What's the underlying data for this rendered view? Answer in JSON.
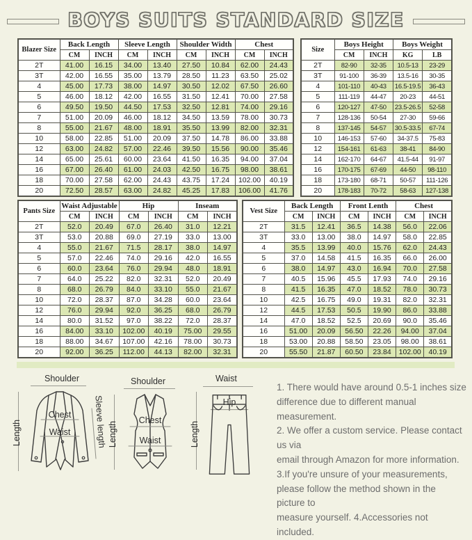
{
  "title": {
    "text": "BOYS SUITS STANDARD SIZE"
  },
  "colors": {
    "background": "#f2f2e4",
    "row_highlight": "#dce8b4",
    "table_border": "#53534b",
    "divider_green": "#e1ebc3",
    "notes_text": "#6d6d6d"
  },
  "tables": {
    "blazer": {
      "size_header": "Blazer Size",
      "groups": [
        {
          "label": "Back Length",
          "units": [
            "CM",
            "INCH"
          ]
        },
        {
          "label": "Sleeve Length",
          "units": [
            "CM",
            "INCH"
          ]
        },
        {
          "label": "Shoulder Width",
          "units": [
            "CM",
            "INCH"
          ]
        },
        {
          "label": "Chest",
          "units": [
            "CM",
            "INCH"
          ]
        }
      ],
      "rows": [
        [
          "2T",
          "41.00",
          "16.15",
          "34.00",
          "13.40",
          "27.50",
          "10.84",
          "62.00",
          "24.43"
        ],
        [
          "3T",
          "42.00",
          "16.55",
          "35.00",
          "13.79",
          "28.50",
          "11.23",
          "63.50",
          "25.02"
        ],
        [
          "4",
          "45.00",
          "17.73",
          "38.00",
          "14.97",
          "30.50",
          "12.02",
          "67.50",
          "26.60"
        ],
        [
          "5",
          "46.00",
          "18.12",
          "42.00",
          "16.55",
          "31.50",
          "12.41",
          "70.00",
          "27.58"
        ],
        [
          "6",
          "49.50",
          "19.50",
          "44.50",
          "17.53",
          "32.50",
          "12.81",
          "74.00",
          "29.16"
        ],
        [
          "7",
          "51.00",
          "20.09",
          "46.00",
          "18.12",
          "34.50",
          "13.59",
          "78.00",
          "30.73"
        ],
        [
          "8",
          "55.00",
          "21.67",
          "48.00",
          "18.91",
          "35.50",
          "13.99",
          "82.00",
          "32.31"
        ],
        [
          "10",
          "58.00",
          "22.85",
          "51.00",
          "20.09",
          "37.50",
          "14.78",
          "86.00",
          "33.88"
        ],
        [
          "12",
          "63.00",
          "24.82",
          "57.00",
          "22.46",
          "39.50",
          "15.56",
          "90.00",
          "35.46"
        ],
        [
          "14",
          "65.00",
          "25.61",
          "60.00",
          "23.64",
          "41.50",
          "16.35",
          "94.00",
          "37.04"
        ],
        [
          "16",
          "67.00",
          "26.40",
          "61.00",
          "24.03",
          "42.50",
          "16.75",
          "98.00",
          "38.61"
        ],
        [
          "18",
          "70.00",
          "27.58",
          "62.00",
          "24.43",
          "43.75",
          "17.24",
          "102.00",
          "40.19"
        ],
        [
          "20",
          "72.50",
          "28.57",
          "63.00",
          "24.82",
          "45.25",
          "17.83",
          "106.00",
          "41.76"
        ]
      ]
    },
    "height_weight": {
      "size_header": "Size",
      "groups": [
        {
          "label": "Boys Height",
          "units": [
            "CM",
            "INCH"
          ]
        },
        {
          "label": "Boys Weight",
          "units": [
            "KG",
            "LB"
          ]
        }
      ],
      "rows": [
        [
          "2T",
          "82-90",
          "32-35",
          "10.5-13",
          "23-29"
        ],
        [
          "3T",
          "91-100",
          "36-39",
          "13.5-16",
          "30-35"
        ],
        [
          "4",
          "101-110",
          "40-43",
          "16.5-19.5",
          "36-43"
        ],
        [
          "5",
          "111-119",
          "44-47",
          "20-23",
          "44-51"
        ],
        [
          "6",
          "120-127",
          "47-50",
          "23.5-26.5",
          "52-58"
        ],
        [
          "7",
          "128-136",
          "50-54",
          "27-30",
          "59-66"
        ],
        [
          "8",
          "137-145",
          "54-57",
          "30.5-33.5",
          "67-74"
        ],
        [
          "10",
          "146-153",
          "57-60",
          "34-37.5",
          "75-83"
        ],
        [
          "12",
          "154-161",
          "61-63",
          "38-41",
          "84-90"
        ],
        [
          "14",
          "162-170",
          "64-67",
          "41.5-44",
          "91-97"
        ],
        [
          "16",
          "170-175",
          "67-69",
          "44-50",
          "98-110"
        ],
        [
          "18",
          "173-180",
          "68-71",
          "50-57",
          "111-126"
        ],
        [
          "20",
          "178-183",
          "70-72",
          "58-63",
          "127-138"
        ]
      ]
    },
    "pants": {
      "size_header": "Pants Size",
      "groups": [
        {
          "label": "Waist Adjustable",
          "units": [
            "CM",
            "INCH"
          ]
        },
        {
          "label": "Hip",
          "units": [
            "CM",
            "INCH"
          ]
        },
        {
          "label": "Inseam",
          "units": [
            "CM",
            "INCH"
          ]
        }
      ],
      "rows": [
        [
          "2T",
          "52.0",
          "20.49",
          "67.0",
          "26.40",
          "31.0",
          "12.21"
        ],
        [
          "3T",
          "53.0",
          "20.88",
          "69.0",
          "27.19",
          "33.0",
          "13.00"
        ],
        [
          "4",
          "55.0",
          "21.67",
          "71.5",
          "28.17",
          "38.0",
          "14.97"
        ],
        [
          "5",
          "57.0",
          "22.46",
          "74.0",
          "29.16",
          "42.0",
          "16.55"
        ],
        [
          "6",
          "60.0",
          "23.64",
          "76.0",
          "29.94",
          "48.0",
          "18.91"
        ],
        [
          "7",
          "64.0",
          "25.22",
          "82.0",
          "32.31",
          "52.0",
          "20.49"
        ],
        [
          "8",
          "68.0",
          "26.79",
          "84.0",
          "33.10",
          "55.0",
          "21.67"
        ],
        [
          "10",
          "72.0",
          "28.37",
          "87.0",
          "34.28",
          "60.0",
          "23.64"
        ],
        [
          "12",
          "76.0",
          "29.94",
          "92.0",
          "36.25",
          "68.0",
          "26.79"
        ],
        [
          "14",
          "80.0",
          "31.52",
          "97.0",
          "38.22",
          "72.0",
          "28.37"
        ],
        [
          "16",
          "84.00",
          "33.10",
          "102.00",
          "40.19",
          "75.00",
          "29.55"
        ],
        [
          "18",
          "88.00",
          "34.67",
          "107.00",
          "42.16",
          "78.00",
          "30.73"
        ],
        [
          "20",
          "92.00",
          "36.25",
          "112.00",
          "44.13",
          "82.00",
          "32.31"
        ]
      ]
    },
    "vest": {
      "size_header": "Vest Size",
      "groups": [
        {
          "label": "Back Length",
          "units": [
            "CM",
            "INCH"
          ]
        },
        {
          "label": "Front Lenth",
          "units": [
            "CM",
            "INCH"
          ]
        },
        {
          "label": "Chest",
          "units": [
            "CM",
            "INCH"
          ]
        }
      ],
      "rows": [
        [
          "2T",
          "31.5",
          "12.41",
          "36.5",
          "14.38",
          "56.0",
          "22.06"
        ],
        [
          "3T",
          "33.0",
          "13.00",
          "38.0",
          "14.97",
          "58.0",
          "22.85"
        ],
        [
          "4",
          "35.5",
          "13.99",
          "40.0",
          "15.76",
          "62.0",
          "24.43"
        ],
        [
          "5",
          "37.0",
          "14.58",
          "41.5",
          "16.35",
          "66.0",
          "26.00"
        ],
        [
          "6",
          "38.0",
          "14.97",
          "43.0",
          "16.94",
          "70.0",
          "27.58"
        ],
        [
          "7",
          "40.5",
          "15.96",
          "45.5",
          "17.93",
          "74.0",
          "29.16"
        ],
        [
          "8",
          "41.5",
          "16.35",
          "47.0",
          "18.52",
          "78.0",
          "30.73"
        ],
        [
          "10",
          "42.5",
          "16.75",
          "49.0",
          "19.31",
          "82.0",
          "32.31"
        ],
        [
          "12",
          "44.5",
          "17.53",
          "50.5",
          "19.90",
          "86.0",
          "33.88"
        ],
        [
          "14",
          "47.0",
          "18.52",
          "52.5",
          "20.69",
          "90.0",
          "35.46"
        ],
        [
          "16",
          "51.00",
          "20.09",
          "56.50",
          "22.26",
          "94.00",
          "37.04"
        ],
        [
          "18",
          "53.00",
          "20.88",
          "58.50",
          "23.05",
          "98.00",
          "38.61"
        ],
        [
          "20",
          "55.50",
          "21.87",
          "60.50",
          "23.84",
          "102.00",
          "40.19"
        ]
      ]
    }
  },
  "diagrams": {
    "jacket": {
      "shoulder": "Shoulder",
      "length": "Length",
      "chest": "Chest",
      "waist": "Waist",
      "sleeve_length": "Sleeve length"
    },
    "vest": {
      "shoulder": "Shoulder",
      "length": "Length",
      "chest": "Chest",
      "waist": "Waist"
    },
    "pants": {
      "waist": "Waist",
      "hip": "Hip",
      "length": "Length"
    }
  },
  "notes": {
    "lines": [
      "1. There would have around 0.5-1 inches size",
      "difference due to different manual measurement.",
      "2. We offer a custom service. Please contact us via",
      "email through Amazon for more information.",
      "3.If you're unsure of your measurements,",
      "please follow the method shown in the picture to",
      "measure yourself. 4.Accessories not included."
    ]
  }
}
